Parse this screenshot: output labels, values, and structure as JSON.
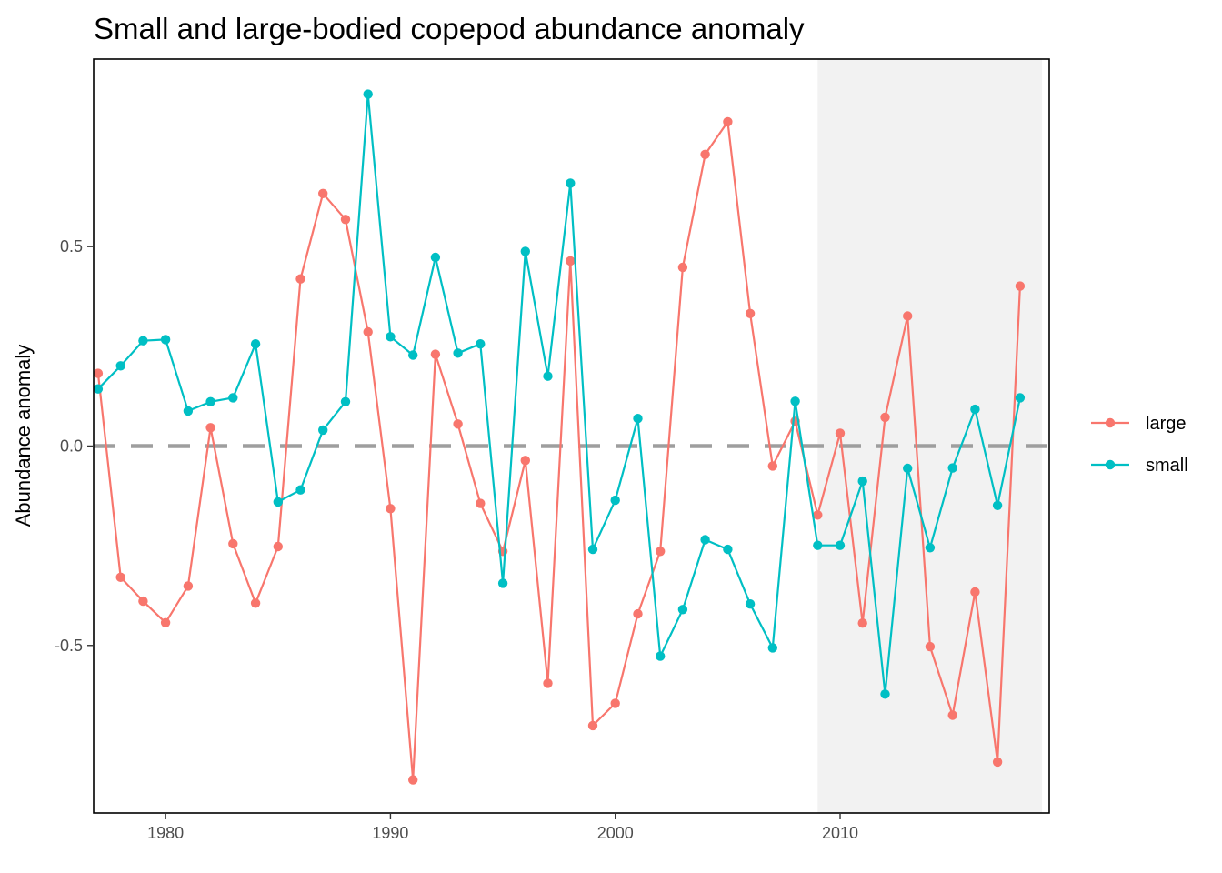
{
  "chart_data": {
    "type": "line",
    "title": "Small and large-bodied copepod abundance anomaly",
    "xlabel": "",
    "ylabel": "Abundance anomaly",
    "xlim": [
      1976.8,
      2019.3
    ],
    "ylim": [
      -0.92,
      0.97
    ],
    "x_ticks": [
      1980,
      1990,
      2000,
      2010
    ],
    "x_tick_labels": [
      "1980",
      "1990",
      "2000",
      "2010"
    ],
    "y_ticks": [
      -0.5,
      0.0,
      0.5
    ],
    "y_tick_labels": [
      "-0.5",
      "0.0",
      "0.5"
    ],
    "reference_line": {
      "y": 0,
      "style": "dashed",
      "color": "#9e9e9e"
    },
    "shaded_region": {
      "x": [
        2009,
        2018.98
      ],
      "color": "#f2f2f2"
    },
    "grid": false,
    "legend_position": "right",
    "x": [
      1977,
      1978,
      1979,
      1980,
      1981,
      1982,
      1983,
      1984,
      1985,
      1986,
      1987,
      1988,
      1989,
      1990,
      1991,
      1992,
      1993,
      1994,
      1995,
      1996,
      1997,
      1998,
      1999,
      2000,
      2001,
      2002,
      2003,
      2004,
      2005,
      2006,
      2007,
      2008,
      2009,
      2010,
      2011,
      2012,
      2013,
      2014,
      2015,
      2016,
      2017,
      2018
    ],
    "series": [
      {
        "name": "large",
        "color": "#F8766D",
        "values": [
          0.182,
          -0.329,
          -0.389,
          -0.443,
          -0.351,
          0.046,
          -0.245,
          -0.394,
          -0.252,
          0.419,
          0.633,
          0.568,
          0.286,
          -0.157,
          -0.837,
          0.23,
          0.055,
          -0.144,
          -0.264,
          -0.036,
          -0.595,
          0.464,
          -0.701,
          -0.645,
          -0.421,
          -0.264,
          0.448,
          0.731,
          0.813,
          0.332,
          -0.05,
          0.062,
          -0.173,
          0.032,
          -0.444,
          0.072,
          0.326,
          -0.503,
          -0.675,
          -0.366,
          -0.792,
          0.401
        ]
      },
      {
        "name": "small",
        "color": "#00BFC4",
        "values": [
          0.143,
          0.201,
          0.264,
          0.267,
          0.088,
          0.111,
          0.121,
          0.256,
          -0.14,
          -0.11,
          0.04,
          0.111,
          0.882,
          0.274,
          0.228,
          0.473,
          0.233,
          0.256,
          -0.344,
          0.488,
          0.175,
          0.659,
          -0.259,
          -0.136,
          0.069,
          -0.527,
          -0.41,
          -0.235,
          -0.259,
          -0.396,
          -0.506,
          0.112,
          -0.249,
          -0.249,
          -0.088,
          -0.622,
          -0.056,
          -0.255,
          -0.055,
          0.092,
          -0.149,
          0.121
        ]
      }
    ]
  }
}
